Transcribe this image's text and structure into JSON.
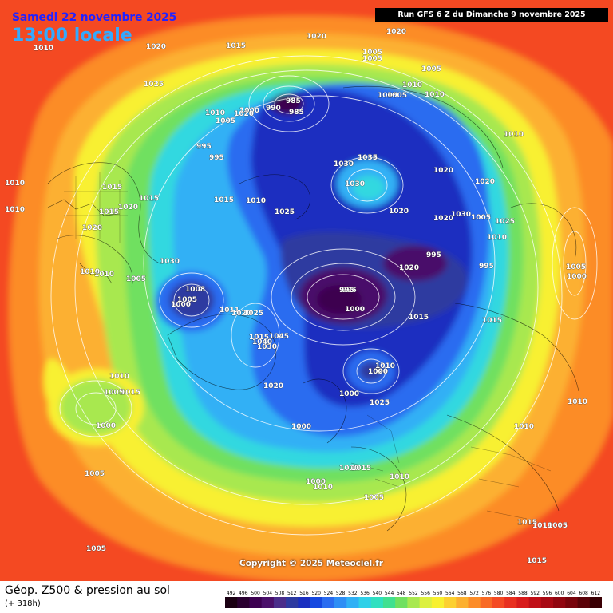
{
  "header": {
    "date": "Samedi 22 novembre 2025",
    "time": "13:00 locale",
    "run": "Run GFS 6 Z du Dimanche 9 novembre 2025"
  },
  "copyright": "Copyright © 2025 Meteociel.fr",
  "footer": {
    "title": "Géop. Z500 & pression au sol",
    "subtitle": "(+ 318h)"
  },
  "legend": {
    "values": [
      "492",
      "496",
      "500",
      "504",
      "508",
      "512",
      "516",
      "520",
      "524",
      "528",
      "532",
      "536",
      "540",
      "544",
      "548",
      "552",
      "556",
      "560",
      "564",
      "568",
      "572",
      "576",
      "580",
      "584",
      "588",
      "592",
      "596",
      "600",
      "604",
      "608",
      "612"
    ],
    "colors": [
      "#1a0012",
      "#2a0030",
      "#3c0050",
      "#4a106a",
      "#4a2d8a",
      "#2d3aa0",
      "#1a2fc0",
      "#1548e0",
      "#2a6cf0",
      "#2e8ef5",
      "#30b0f5",
      "#2fd0e8",
      "#30e0c0",
      "#40e090",
      "#70e060",
      "#a8e850",
      "#dcf040",
      "#f8f030",
      "#fcd030",
      "#fcb030",
      "#fc8c28",
      "#f86a26",
      "#f44a24",
      "#e83020",
      "#d81c1c",
      "#c01018",
      "#a80a14",
      "#900610",
      "#78040c",
      "#5a0208",
      "#3a0004"
    ]
  },
  "map": {
    "colors": {
      "ocean_outer": "#f44a24",
      "outer_ring": "#fc8c28",
      "orange_ring": "#fcb030",
      "yellow_ring": "#f8f030",
      "green_ring": "#a8e850",
      "lightgreen": "#70e060",
      "cyan_ring": "#30d8e0",
      "lightblue": "#30b0f5",
      "blue": "#2a6cf0",
      "deepblue": "#1a2fc0",
      "navy": "#2d3aa0",
      "purple": "#4a106a",
      "deep_purple": "#3c0050"
    },
    "pressure_labels": [
      "1010",
      "1020",
      "1015",
      "1020",
      "1025",
      "1010",
      "1005",
      "995",
      "995",
      "1000",
      "985",
      "990",
      "985",
      "1020",
      "1005",
      "1005",
      "1005",
      "1010",
      "1010",
      "1005",
      "1005",
      "1010",
      "1010",
      "1015",
      "1020",
      "1015",
      "1015",
      "1020",
      "1030",
      "1030",
      "1035",
      "1010",
      "1010",
      "1020",
      "1015",
      "1025",
      "1020",
      "1020",
      "1020",
      "1005",
      "1010",
      "1030",
      "1030",
      "1005",
      "1010",
      "1010",
      "1008",
      "1000",
      "1005",
      "995",
      "1000",
      "1020",
      "1011",
      "1020",
      "1025",
      "1015",
      "1030",
      "1040",
      "1045",
      "1020",
      "1025",
      "1010",
      "1005",
      "1015",
      "1020",
      "1005",
      "1000",
      "995",
      "1010",
      "1020",
      "1015",
      "1015",
      "995",
      "995",
      "1000",
      "1000",
      "1000",
      "1000",
      "1000",
      "1010",
      "1010",
      "1015",
      "1005",
      "1025",
      "1010",
      "1010",
      "1010",
      "1005",
      "1015",
      "1010",
      "1005",
      "1015",
      "1005"
    ]
  }
}
